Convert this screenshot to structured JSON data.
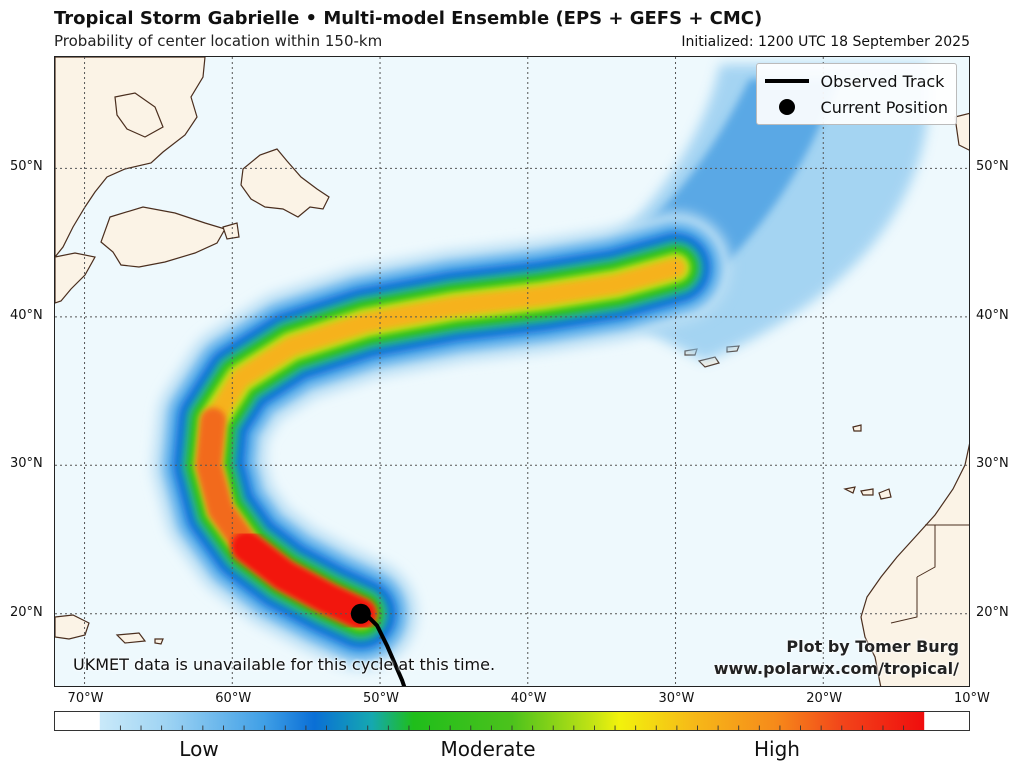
{
  "title": "Tropical Storm Gabrielle • Multi-model Ensemble (EPS + GEFS + CMC)",
  "subtitle": "Probability of center location within 150-km",
  "initialized": "Initialized: 1200 UTC 18 September 2025",
  "legend": {
    "observed": "Observed Track",
    "current": "Current Position"
  },
  "note": "UKMET data is unavailable for this cycle at this time.",
  "credit": {
    "line1": "Plot by Tomer Burg",
    "line2": "www.polarwx.com/tropical/"
  },
  "colors": {
    "ocean": "#eef9fd",
    "land": "#fbf3e6",
    "coast": "#4a2e1e",
    "track": "#000000"
  },
  "map_data": {
    "lon_range": [
      -72,
      -10
    ],
    "lat_range": [
      15,
      57.5
    ],
    "lat_ticks": [
      "50°N",
      "40°N",
      "30°N",
      "20°N"
    ],
    "lat_values": [
      50,
      40,
      30,
      20
    ],
    "lon_ticks": [
      "70°W",
      "60°W",
      "50°W",
      "40°W",
      "30°W",
      "20°W",
      "10°W"
    ],
    "lon_values": [
      -70,
      -60,
      -50,
      -40,
      -30,
      -20,
      -10
    ],
    "observed_track": [
      [
        -47.3,
        12.0
      ],
      [
        -48.5,
        15.5
      ],
      [
        -49.5,
        17.8
      ],
      [
        -50.2,
        19.2
      ],
      [
        -50.9,
        19.9
      ],
      [
        -51.3,
        20.0
      ]
    ],
    "current_position": [
      -51.3,
      20.0
    ]
  },
  "colorbar": {
    "labels": [
      "Low",
      "Moderate",
      "High"
    ]
  }
}
